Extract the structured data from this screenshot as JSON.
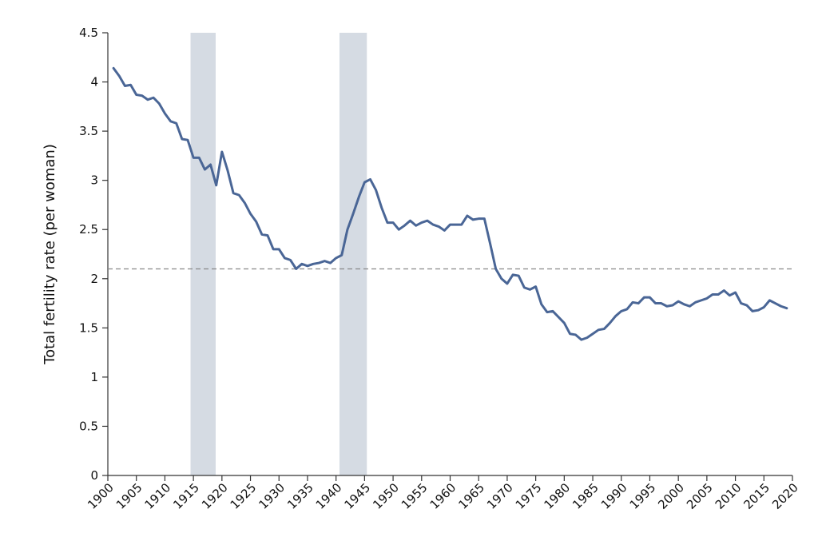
{
  "chart_data": {
    "type": "line",
    "title": "",
    "xlabel": "",
    "ylabel": "Total fertility rate (per woman)",
    "xlim": [
      1900,
      2020
    ],
    "ylim": [
      0,
      4.5
    ],
    "x_ticks": [
      "1900",
      "1905",
      "1910",
      "1915",
      "1920",
      "1925",
      "1930",
      "1935",
      "1940",
      "1945",
      "1950",
      "1955",
      "1960",
      "1965",
      "1970",
      "1975",
      "1980",
      "1985",
      "1990",
      "1995",
      "2000",
      "2005",
      "2010",
      "2015",
      "2020"
    ],
    "y_ticks": [
      "0",
      "0.5",
      "1",
      "1.5",
      "2",
      "2.5",
      "3",
      "3.5",
      "4",
      "4.5"
    ],
    "grid": false,
    "legend": "none",
    "line_color": "#4a6696",
    "band_color": "#d5dbe3",
    "reference_color": "#888888",
    "reference_line": {
      "y": 2.1,
      "style": "dashed"
    },
    "shaded_periods": [
      {
        "x_start": 1914.5,
        "x_end": 1918.9
      },
      {
        "x_start": 1940.6,
        "x_end": 1945.4
      }
    ],
    "series": [
      {
        "x": [
          1901,
          1902,
          1903,
          1904,
          1905,
          1906,
          1907,
          1908,
          1909,
          1910,
          1911,
          1912,
          1913,
          1914,
          1915,
          1916,
          1917,
          1918,
          1919,
          1920,
          1921,
          1922,
          1923,
          1924,
          1925,
          1926,
          1927,
          1928,
          1929,
          1930,
          1931,
          1932,
          1933,
          1934,
          1935,
          1936,
          1937,
          1938,
          1939,
          1940,
          1941,
          1942,
          1943,
          1944,
          1945,
          1946,
          1947,
          1948,
          1949,
          1950,
          1951,
          1952,
          1953,
          1954,
          1955,
          1956,
          1957,
          1958,
          1959,
          1960,
          1961,
          1962,
          1963,
          1964,
          1965,
          1966,
          1967,
          1968,
          1969,
          1970,
          1971,
          1972,
          1973,
          1974,
          1975,
          1976,
          1977,
          1978,
          1979,
          1980,
          1981,
          1982,
          1983,
          1984,
          1985,
          1986,
          1987,
          1988,
          1989,
          1990,
          1991,
          1992,
          1993,
          1994,
          1995,
          1996,
          1997,
          1998,
          1999,
          2000,
          2001,
          2002,
          2003,
          2004,
          2005,
          2006,
          2007,
          2008,
          2009,
          2010,
          2011,
          2012,
          2013,
          2014,
          2015,
          2016,
          2017,
          2018,
          2019
        ],
        "values": [
          4.14,
          4.06,
          3.96,
          3.97,
          3.87,
          3.86,
          3.82,
          3.84,
          3.78,
          3.68,
          3.6,
          3.58,
          3.42,
          3.41,
          3.23,
          3.23,
          3.11,
          3.16,
          2.95,
          3.29,
          3.1,
          2.87,
          2.85,
          2.77,
          2.66,
          2.58,
          2.45,
          2.44,
          2.3,
          2.3,
          2.21,
          2.19,
          2.1,
          2.15,
          2.13,
          2.15,
          2.16,
          2.18,
          2.16,
          2.21,
          2.24,
          2.5,
          2.66,
          2.83,
          2.98,
          3.01,
          2.9,
          2.72,
          2.57,
          2.57,
          2.5,
          2.54,
          2.59,
          2.54,
          2.57,
          2.59,
          2.55,
          2.53,
          2.49,
          2.55,
          2.55,
          2.55,
          2.64,
          2.6,
          2.61,
          2.61,
          2.36,
          2.1,
          2.0,
          1.95,
          2.04,
          2.03,
          1.91,
          1.89,
          1.92,
          1.74,
          1.66,
          1.67,
          1.61,
          1.55,
          1.44,
          1.43,
          1.38,
          1.4,
          1.44,
          1.48,
          1.49,
          1.55,
          1.62,
          1.67,
          1.69,
          1.76,
          1.75,
          1.81,
          1.81,
          1.75,
          1.75,
          1.72,
          1.73,
          1.77,
          1.74,
          1.72,
          1.76,
          1.78,
          1.8,
          1.84,
          1.84,
          1.88,
          1.83,
          1.86,
          1.75,
          1.73,
          1.67,
          1.68,
          1.71,
          1.78,
          1.75,
          1.72,
          1.7
        ]
      }
    ]
  }
}
